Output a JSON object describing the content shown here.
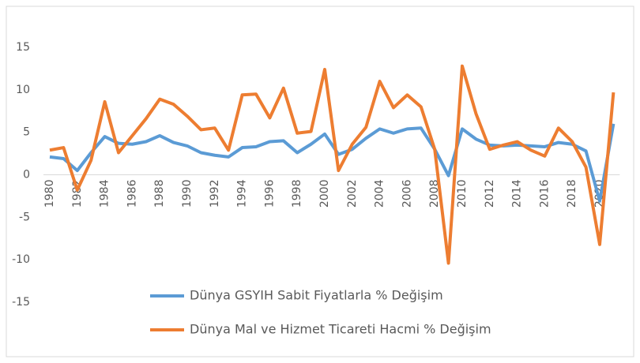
{
  "chart_data": {
    "type": "line",
    "categories": [
      "1980",
      null,
      "1982",
      null,
      "1984",
      null,
      "1986",
      null,
      "1988",
      null,
      "1990",
      null,
      "1992",
      null,
      "1994",
      null,
      "1996",
      null,
      "1998",
      null,
      "2000",
      null,
      "2002",
      null,
      "2004",
      null,
      "2006",
      null,
      "2008",
      null,
      "2010",
      null,
      "2012",
      null,
      "2014",
      null,
      "2016",
      null,
      "2018",
      null,
      "2020",
      null
    ],
    "series": [
      {
        "name": "Dünya GSYIH Sabit Fiyatlarla % Değişim",
        "color": "#5b9bd5",
        "values": [
          2.1,
          1.9,
          0.5,
          2.6,
          4.5,
          3.7,
          3.6,
          3.9,
          4.6,
          3.8,
          3.4,
          2.6,
          2.3,
          2.1,
          3.2,
          3.3,
          3.9,
          4.0,
          2.6,
          3.6,
          4.8,
          2.4,
          3.0,
          4.3,
          5.4,
          4.9,
          5.4,
          5.5,
          3.0,
          -0.1,
          5.4,
          4.2,
          3.5,
          3.4,
          3.5,
          3.4,
          3.3,
          3.8,
          3.6,
          2.8,
          -3.1,
          6.0
        ]
      },
      {
        "name": "Dünya Mal ve Hizmet Ticareti Hacmi % Değişim",
        "color": "#ed7d31",
        "values": [
          2.9,
          3.2,
          -1.8,
          1.7,
          8.6,
          2.6,
          4.6,
          6.6,
          8.9,
          8.3,
          6.9,
          5.3,
          5.5,
          2.9,
          9.4,
          9.5,
          6.7,
          10.2,
          4.9,
          5.1,
          12.4,
          0.5,
          3.6,
          5.6,
          11.0,
          7.9,
          9.4,
          8.0,
          3.0,
          -10.4,
          12.8,
          7.2,
          3.0,
          3.5,
          3.9,
          2.9,
          2.2,
          5.5,
          3.9,
          0.9,
          -8.2,
          9.7
        ]
      }
    ],
    "ylim": [
      -15,
      15
    ],
    "yticks": [
      -15,
      -10,
      -5,
      0,
      5,
      10,
      15
    ],
    "grid": false,
    "legend": "bottom"
  }
}
